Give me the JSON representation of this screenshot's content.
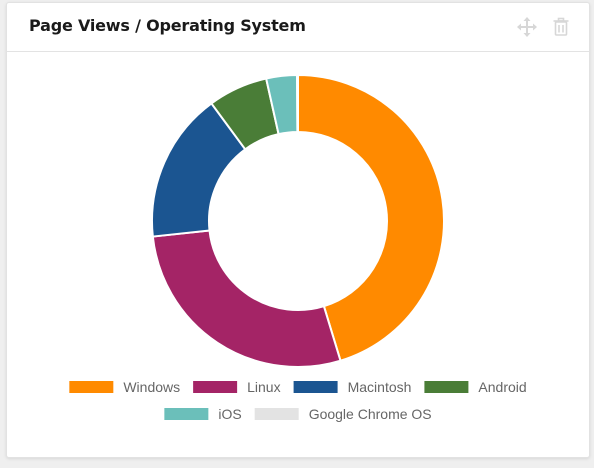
{
  "widget": {
    "title": "Page Views / Operating System",
    "icons": [
      "move-icon",
      "trash-icon"
    ]
  },
  "colors": {
    "Windows": "#ff8a00",
    "Linux": "#a42466",
    "Macintosh": "#1b5591",
    "Android": "#4a7d37",
    "iOS": "#6bbfba",
    "Google Chrome OS": "#e3e3e3"
  },
  "chart_data": {
    "type": "pie",
    "variant": "doughnut",
    "categories": [
      "Windows",
      "Linux",
      "Macintosh",
      "Android",
      "iOS",
      "Google Chrome OS"
    ],
    "values": [
      45.3,
      28.0,
      16.6,
      6.6,
      3.4,
      0.1
    ],
    "unit": "percent (estimated from slice angles)",
    "legend": {
      "placement": "bottom",
      "entries": [
        "Windows",
        "Linux",
        "Macintosh",
        "Android",
        "iOS",
        "Google Chrome OS"
      ]
    }
  }
}
